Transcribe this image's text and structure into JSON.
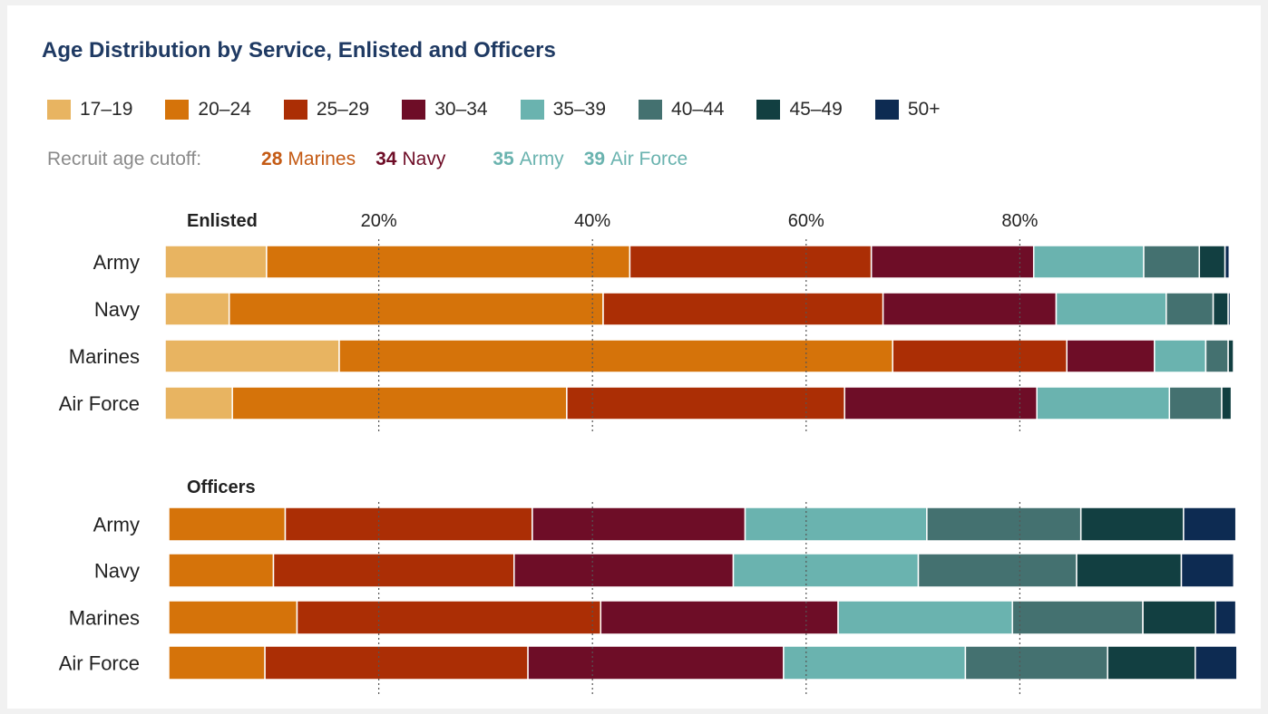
{
  "title": "Age Distribution by Service, Enlisted and Officers",
  "legend": [
    {
      "label": "17–19",
      "color": "#e8b461"
    },
    {
      "label": "20–24",
      "color": "#d5730a"
    },
    {
      "label": "25–29",
      "color": "#ab2e05"
    },
    {
      "label": "30–34",
      "color": "#6e0d27"
    },
    {
      "label": "35–39",
      "color": "#6ab3af"
    },
    {
      "label": "40–44",
      "color": "#447170"
    },
    {
      "label": "45–49",
      "color": "#123f41"
    },
    {
      "label": "50+",
      "color": "#0d2b52"
    }
  ],
  "cutoff": {
    "label": "Recruit age cutoff:",
    "items": [
      {
        "num": "28",
        "name": "Marines",
        "color": "#c45a14"
      },
      {
        "num": "34",
        "name": "Navy",
        "color": "#6e0d27"
      },
      {
        "num": "35",
        "name": "Army",
        "color": "#6ab3af"
      },
      {
        "num": "39",
        "name": "Air Force",
        "color": "#6ab3af"
      }
    ]
  },
  "chart_data": {
    "type": "bar",
    "orientation": "horizontal",
    "stacked": true,
    "xlim": [
      0,
      100
    ],
    "x_ticks": [
      "20%",
      "40%",
      "60%",
      "80%"
    ],
    "x_tick_values": [
      20,
      40,
      60,
      80
    ],
    "grid": "dotted vertical",
    "series": [
      "17–19",
      "20–24",
      "25–29",
      "30–34",
      "35–39",
      "40–44",
      "45–49",
      "50+"
    ],
    "panels": [
      {
        "name": "Enlisted",
        "categories": [
          "Army",
          "Navy",
          "Marines",
          "Air Force"
        ],
        "values": [
          [
            9.5,
            34.0,
            22.6,
            15.2,
            10.3,
            5.2,
            2.4,
            0.4
          ],
          [
            6.0,
            35.0,
            26.2,
            16.2,
            10.3,
            4.4,
            1.4,
            0.2
          ],
          [
            16.3,
            51.8,
            16.3,
            8.2,
            4.8,
            2.1,
            0.5,
            0.0
          ],
          [
            6.3,
            31.3,
            26.0,
            18.0,
            12.4,
            4.9,
            0.9,
            0.0
          ]
        ]
      },
      {
        "name": "Officers",
        "categories": [
          "Army",
          "Navy",
          "Marines",
          "Air Force"
        ],
        "values": [
          [
            0.0,
            10.9,
            23.1,
            19.9,
            17.0,
            14.4,
            9.6,
            4.9
          ],
          [
            0.0,
            9.8,
            22.5,
            20.5,
            17.3,
            14.8,
            9.8,
            4.9
          ],
          [
            0.0,
            12.0,
            28.4,
            22.2,
            16.3,
            12.2,
            6.8,
            1.9
          ],
          [
            0.0,
            9.0,
            24.6,
            23.9,
            17.0,
            13.3,
            8.2,
            3.9
          ]
        ]
      }
    ]
  }
}
